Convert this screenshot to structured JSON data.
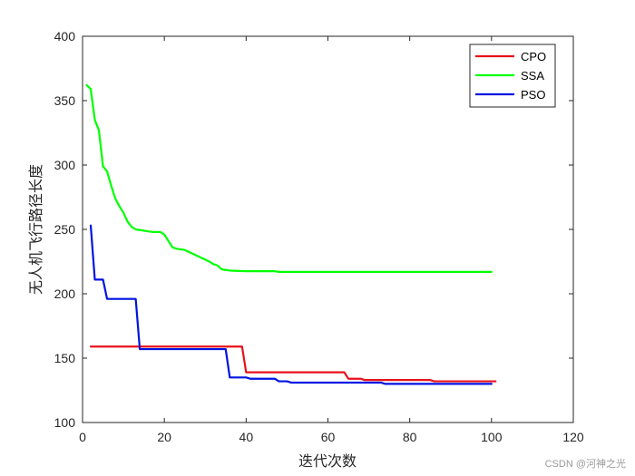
{
  "chart_data": {
    "type": "line",
    "xlabel": "迭代次数",
    "ylabel": "无人机飞行路径长度",
    "xlim": [
      0,
      120
    ],
    "ylim": [
      100,
      400
    ],
    "xticks": [
      0,
      20,
      40,
      60,
      80,
      100,
      120
    ],
    "yticks": [
      100,
      150,
      200,
      250,
      300,
      350,
      400
    ],
    "grid": false,
    "legend_position": "top-right",
    "series": [
      {
        "name": "CPO",
        "color": "#e8121b",
        "points": [
          [
            2,
            159
          ],
          [
            20,
            159
          ],
          [
            39,
            159
          ],
          [
            40,
            139
          ],
          [
            50,
            139
          ],
          [
            60,
            139
          ],
          [
            64,
            139
          ],
          [
            65,
            134
          ],
          [
            68,
            134
          ],
          [
            69,
            133
          ],
          [
            75,
            133
          ],
          [
            80,
            133
          ],
          [
            85,
            133
          ],
          [
            86,
            132
          ],
          [
            95,
            132
          ],
          [
            101,
            132
          ]
        ]
      },
      {
        "name": "SSA",
        "color": "#00ff00",
        "points": [
          [
            1,
            362
          ],
          [
            2,
            359
          ],
          [
            3,
            335
          ],
          [
            4,
            327
          ],
          [
            5,
            299
          ],
          [
            6,
            295
          ],
          [
            7,
            284
          ],
          [
            8,
            274
          ],
          [
            9,
            268
          ],
          [
            10,
            263
          ],
          [
            11,
            256
          ],
          [
            12,
            252
          ],
          [
            13,
            250
          ],
          [
            15,
            249
          ],
          [
            17,
            248
          ],
          [
            19,
            248
          ],
          [
            20,
            246
          ],
          [
            21,
            241
          ],
          [
            22,
            236
          ],
          [
            23,
            235
          ],
          [
            25,
            234
          ],
          [
            27,
            231
          ],
          [
            29,
            228
          ],
          [
            31,
            225
          ],
          [
            32,
            223
          ],
          [
            33,
            222
          ],
          [
            34,
            219
          ],
          [
            36,
            218
          ],
          [
            40,
            217.5
          ],
          [
            47,
            217.5
          ],
          [
            48,
            217
          ],
          [
            60,
            217
          ],
          [
            80,
            217
          ],
          [
            100,
            217
          ]
        ]
      },
      {
        "name": "PSO",
        "color": "#0014e0",
        "points": [
          [
            2,
            253
          ],
          [
            3,
            211
          ],
          [
            5,
            211
          ],
          [
            6,
            196
          ],
          [
            13,
            196
          ],
          [
            14,
            157
          ],
          [
            20,
            157
          ],
          [
            35,
            157
          ],
          [
            36,
            135
          ],
          [
            40,
            135
          ],
          [
            41,
            134
          ],
          [
            47,
            134
          ],
          [
            48,
            132
          ],
          [
            50,
            132
          ],
          [
            51,
            131
          ],
          [
            65,
            131
          ],
          [
            73,
            131
          ],
          [
            74,
            130
          ],
          [
            100,
            130
          ]
        ]
      }
    ]
  },
  "watermark": "CSDN @河神之光"
}
